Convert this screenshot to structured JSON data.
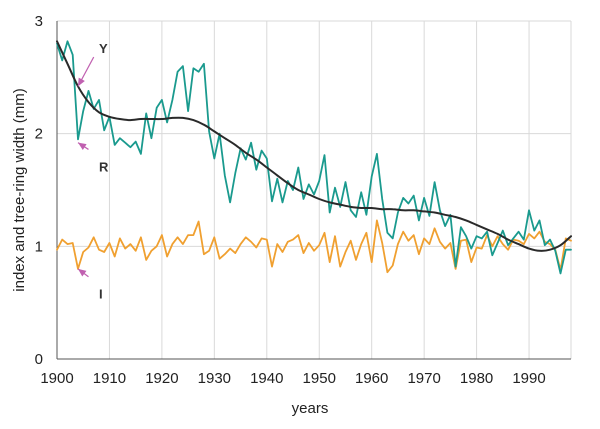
{
  "chart_data": {
    "type": "line",
    "title": "",
    "xlabel": "years",
    "ylabel": "index  and  tree-ring width  (mm)",
    "xlim": [
      1900,
      1998
    ],
    "ylim": [
      0,
      3
    ],
    "x_ticks": [
      "1900",
      "1910",
      "1920",
      "1930",
      "1940",
      "1950",
      "1960",
      "1970",
      "1980",
      "1990"
    ],
    "y_ticks": [
      "0",
      "1",
      "2",
      "3"
    ],
    "grid": "horizontal and vertical",
    "years": [
      1900,
      1901,
      1902,
      1903,
      1904,
      1905,
      1906,
      1907,
      1908,
      1909,
      1910,
      1911,
      1912,
      1913,
      1914,
      1915,
      1916,
      1917,
      1918,
      1919,
      1920,
      1921,
      1922,
      1923,
      1924,
      1925,
      1926,
      1927,
      1928,
      1929,
      1930,
      1931,
      1932,
      1933,
      1934,
      1935,
      1936,
      1937,
      1938,
      1939,
      1940,
      1941,
      1942,
      1943,
      1944,
      1945,
      1946,
      1947,
      1948,
      1949,
      1950,
      1951,
      1952,
      1953,
      1954,
      1955,
      1956,
      1957,
      1958,
      1959,
      1960,
      1961,
      1962,
      1963,
      1964,
      1965,
      1966,
      1967,
      1968,
      1969,
      1970,
      1971,
      1972,
      1973,
      1974,
      1975,
      1976,
      1977,
      1978,
      1979,
      1980,
      1981,
      1982,
      1983,
      1984,
      1985,
      1986,
      1987,
      1988,
      1989,
      1990,
      1991,
      1992,
      1993,
      1994,
      1995,
      1996,
      1997,
      1998
    ],
    "series": [
      {
        "name": "Y",
        "color": "#1a9a8e",
        "values": [
          2.8,
          2.65,
          2.82,
          2.7,
          1.95,
          2.2,
          2.38,
          2.22,
          2.3,
          2.03,
          2.15,
          1.9,
          1.96,
          1.92,
          1.88,
          1.93,
          1.82,
          2.18,
          1.96,
          2.23,
          2.3,
          2.1,
          2.3,
          2.55,
          2.6,
          2.2,
          2.58,
          2.55,
          2.62,
          2.02,
          1.78,
          2.0,
          1.63,
          1.39,
          1.65,
          1.87,
          1.77,
          1.92,
          1.68,
          1.85,
          1.78,
          1.4,
          1.6,
          1.39,
          1.58,
          1.5,
          1.7,
          1.42,
          1.55,
          1.46,
          1.58,
          1.81,
          1.3,
          1.52,
          1.35,
          1.57,
          1.32,
          1.26,
          1.48,
          1.28,
          1.62,
          1.82,
          1.42,
          1.12,
          1.07,
          1.3,
          1.43,
          1.38,
          1.45,
          1.23,
          1.43,
          1.27,
          1.57,
          1.32,
          1.18,
          1.28,
          0.82,
          1.17,
          1.09,
          0.98,
          1.09,
          1.07,
          1.13,
          0.92,
          1.03,
          1.14,
          1.01,
          1.07,
          1.13,
          1.06,
          1.32,
          1.14,
          1.23,
          1.01,
          1.06,
          0.96,
          0.76,
          0.97,
          0.97
        ]
      },
      {
        "name": "I",
        "color": "#f0a030",
        "values": [
          0.97,
          1.06,
          1.02,
          1.03,
          0.8,
          0.95,
          0.99,
          1.08,
          0.97,
          0.95,
          1.03,
          0.91,
          1.07,
          0.98,
          1.02,
          0.96,
          1.08,
          0.88,
          0.96,
          1.0,
          1.1,
          0.91,
          1.02,
          1.08,
          1.02,
          1.1,
          1.1,
          1.22,
          0.93,
          0.96,
          1.08,
          0.89,
          0.93,
          0.98,
          0.94,
          1.02,
          1.08,
          1.04,
          0.99,
          1.07,
          1.06,
          0.82,
          1.02,
          0.95,
          1.04,
          1.06,
          1.1,
          0.94,
          1.03,
          0.96,
          1.01,
          1.12,
          0.86,
          1.09,
          0.82,
          0.95,
          1.05,
          0.88,
          1.02,
          1.12,
          0.86,
          1.23,
          1.03,
          0.77,
          0.83,
          1.02,
          1.13,
          1.05,
          1.1,
          0.93,
          1.07,
          1.02,
          1.16,
          1.04,
          0.98,
          1.03,
          0.8,
          1.05,
          1.06,
          0.86,
          0.99,
          0.98,
          1.1,
          1.0,
          1.09,
          1.02,
          0.97,
          1.06,
          1.05,
          1.02,
          1.11,
          1.07,
          1.13,
          1.04,
          1.02,
          0.97,
          0.79,
          1.07,
          1.05
        ]
      },
      {
        "name": "R",
        "color": "#2a2a2a",
        "style": "smooth",
        "points": [
          [
            1900,
            2.82
          ],
          [
            1902,
            2.62
          ],
          [
            1904,
            2.42
          ],
          [
            1906,
            2.28
          ],
          [
            1908,
            2.19
          ],
          [
            1910,
            2.15
          ],
          [
            1912,
            2.13
          ],
          [
            1914,
            2.12
          ],
          [
            1916,
            2.13
          ],
          [
            1918,
            2.13
          ],
          [
            1920,
            2.13
          ],
          [
            1922,
            2.14
          ],
          [
            1924,
            2.14
          ],
          [
            1926,
            2.12
          ],
          [
            1928,
            2.08
          ],
          [
            1930,
            2.02
          ],
          [
            1932,
            1.96
          ],
          [
            1934,
            1.9
          ],
          [
            1936,
            1.83
          ],
          [
            1938,
            1.77
          ],
          [
            1940,
            1.7
          ],
          [
            1942,
            1.63
          ],
          [
            1944,
            1.56
          ],
          [
            1946,
            1.5
          ],
          [
            1948,
            1.46
          ],
          [
            1950,
            1.42
          ],
          [
            1952,
            1.39
          ],
          [
            1954,
            1.37
          ],
          [
            1956,
            1.35
          ],
          [
            1958,
            1.34
          ],
          [
            1960,
            1.34
          ],
          [
            1962,
            1.33
          ],
          [
            1964,
            1.33
          ],
          [
            1966,
            1.32
          ],
          [
            1968,
            1.32
          ],
          [
            1970,
            1.31
          ],
          [
            1972,
            1.3
          ],
          [
            1974,
            1.28
          ],
          [
            1976,
            1.26
          ],
          [
            1978,
            1.23
          ],
          [
            1980,
            1.19
          ],
          [
            1982,
            1.15
          ],
          [
            1984,
            1.11
          ],
          [
            1986,
            1.06
          ],
          [
            1988,
            1.02
          ],
          [
            1990,
            0.98
          ],
          [
            1992,
            0.96
          ],
          [
            1994,
            0.97
          ],
          [
            1996,
            1.01
          ],
          [
            1998,
            1.09
          ]
        ]
      }
    ],
    "annotations": [
      {
        "label": "Y",
        "arrow_to": [
          1904,
          2.42
        ],
        "arrow_from": [
          1907,
          2.68
        ],
        "label_at": [
          1908,
          2.76
        ]
      },
      {
        "label": "R",
        "arrow_to": [
          1904,
          1.92
        ],
        "arrow_from": [
          1906,
          1.86
        ],
        "label_at": [
          1908,
          1.71
        ]
      },
      {
        "label": "I",
        "arrow_to": [
          1904,
          0.8
        ],
        "arrow_from": [
          1906,
          0.73
        ],
        "label_at": [
          1908,
          0.58
        ]
      }
    ],
    "arrow_color": "#c060b0"
  }
}
